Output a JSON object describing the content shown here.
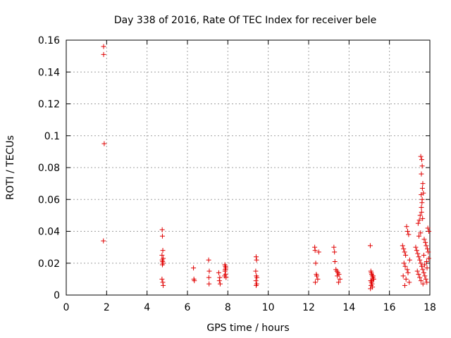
{
  "chart_data": {
    "type": "scatter",
    "title": "Day 338 of 2016, Rate Of TEC Index for receiver bele",
    "xlabel": "GPS time / hours",
    "ylabel": "ROTI / TECUs",
    "xlim": [
      0,
      18
    ],
    "ylim": [
      0,
      0.16
    ],
    "xticks": [
      0,
      2,
      4,
      6,
      8,
      10,
      12,
      14,
      16,
      18
    ],
    "xtick_labels": [
      "0",
      "2",
      "4",
      "6",
      "8",
      "10",
      "12",
      "14",
      "16",
      "18"
    ],
    "yticks": [
      0,
      0.02,
      0.04,
      0.06,
      0.08,
      0.1,
      0.12,
      0.14,
      0.16
    ],
    "ytick_labels": [
      "0",
      "0.02",
      "0.04",
      "0.06",
      "0.08",
      "0.1",
      "0.12",
      "0.14",
      "0.16"
    ],
    "grid": true,
    "marker": "+",
    "color": "#e00000",
    "series": [
      {
        "name": "ROTI",
        "x": [
          1.85,
          1.85,
          1.88,
          1.84,
          4.75,
          4.76,
          4.78,
          4.74,
          4.8,
          4.75,
          4.77,
          4.79,
          4.76,
          4.74,
          4.78,
          4.8,
          6.3,
          6.32,
          6.34,
          7.05,
          7.08,
          7.06,
          7.07,
          7.55,
          7.6,
          7.58,
          7.62,
          7.85,
          7.88,
          7.9,
          7.87,
          7.86,
          7.89,
          7.84,
          7.91,
          9.4,
          9.42,
          9.38,
          9.41,
          9.44,
          9.39,
          9.43,
          9.4,
          12.3,
          12.32,
          12.35,
          12.4,
          12.5,
          12.45,
          12.33,
          12.38,
          13.25,
          13.28,
          13.3,
          13.35,
          13.4,
          13.45,
          13.5,
          13.55,
          13.48,
          13.42,
          15.05,
          15.08,
          15.1,
          15.12,
          15.15,
          15.18,
          15.2,
          15.07,
          15.11,
          15.14,
          15.09,
          15.16,
          15.13,
          15.19,
          15.06,
          15.22,
          16.65,
          16.7,
          16.75,
          16.8,
          16.85,
          16.9,
          16.95,
          17.0,
          16.72,
          16.78,
          16.88,
          16.92,
          16.68,
          16.82,
          16.98,
          16.76,
          17.3,
          17.35,
          17.4,
          17.45,
          17.5,
          17.55,
          17.6,
          17.65,
          17.7,
          17.75,
          17.8,
          17.85,
          17.9,
          17.95,
          17.42,
          17.48,
          17.52,
          17.58,
          17.62,
          17.68,
          17.72,
          17.78,
          17.82,
          17.88,
          17.92,
          17.55,
          17.6,
          17.62,
          17.58,
          17.65,
          17.63,
          17.57,
          17.61,
          17.59,
          17.64,
          17.38,
          17.44,
          17.5,
          17.56,
          17.66,
          17.74,
          17.84,
          17.94,
          17.46,
          17.54,
          17.7,
          17.86
        ],
        "y": [
          0.156,
          0.151,
          0.095,
          0.034,
          0.041,
          0.037,
          0.028,
          0.025,
          0.023,
          0.022,
          0.021,
          0.02,
          0.019,
          0.01,
          0.008,
          0.006,
          0.017,
          0.01,
          0.009,
          0.022,
          0.015,
          0.011,
          0.007,
          0.014,
          0.011,
          0.009,
          0.007,
          0.019,
          0.018,
          0.017,
          0.016,
          0.015,
          0.013,
          0.012,
          0.011,
          0.024,
          0.022,
          0.015,
          0.012,
          0.011,
          0.009,
          0.007,
          0.006,
          0.03,
          0.028,
          0.02,
          0.012,
          0.027,
          0.01,
          0.008,
          0.013,
          0.03,
          0.027,
          0.021,
          0.016,
          0.015,
          0.014,
          0.013,
          0.01,
          0.008,
          0.012,
          0.031,
          0.015,
          0.014,
          0.013,
          0.012,
          0.011,
          0.01,
          0.009,
          0.008,
          0.007,
          0.006,
          0.005,
          0.009,
          0.012,
          0.004,
          0.01,
          0.031,
          0.029,
          0.027,
          0.025,
          0.043,
          0.04,
          0.038,
          0.022,
          0.02,
          0.018,
          0.016,
          0.014,
          0.012,
          0.01,
          0.008,
          0.006,
          0.03,
          0.028,
          0.026,
          0.024,
          0.022,
          0.02,
          0.018,
          0.016,
          0.014,
          0.012,
          0.01,
          0.008,
          0.042,
          0.04,
          0.045,
          0.047,
          0.05,
          0.055,
          0.06,
          0.064,
          0.035,
          0.033,
          0.031,
          0.029,
          0.027,
          0.087,
          0.085,
          0.081,
          0.076,
          0.07,
          0.067,
          0.063,
          0.058,
          0.052,
          0.048,
          0.015,
          0.013,
          0.011,
          0.009,
          0.007,
          0.019,
          0.021,
          0.023,
          0.037,
          0.039,
          0.025,
          0.017
        ]
      }
    ]
  }
}
